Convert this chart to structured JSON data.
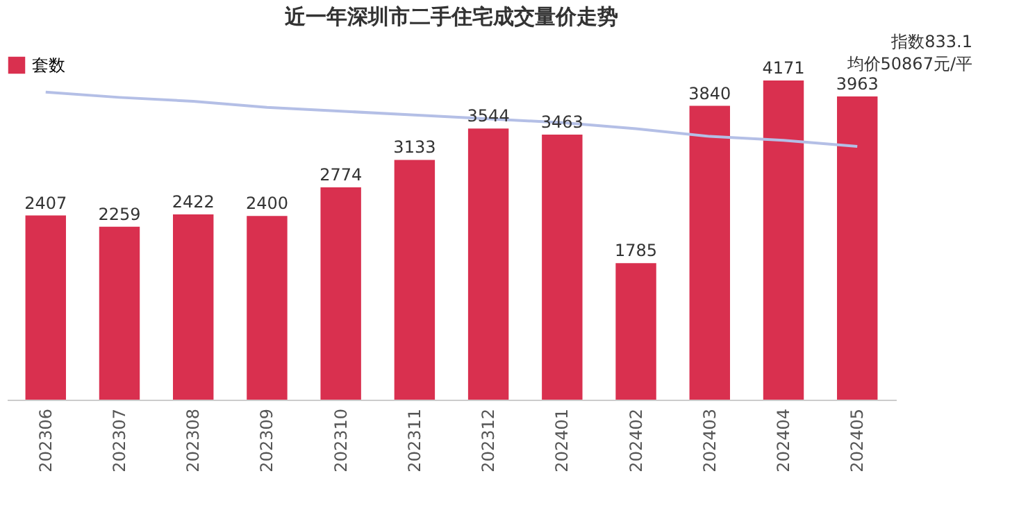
{
  "chart_data": {
    "type": "bar",
    "title": "近一年深圳市二手住宅成交量价走势",
    "categories": [
      "202306",
      "202307",
      "202308",
      "202309",
      "202310",
      "202311",
      "202312",
      "202401",
      "202402",
      "202403",
      "202404",
      "202405"
    ],
    "series": [
      {
        "name": "套数",
        "color": "#d9304f",
        "values": [
          2407,
          2259,
          2422,
          2400,
          2774,
          3133,
          3544,
          3463,
          1785,
          3840,
          4171,
          3963
        ],
        "value_labels": [
          "2407",
          "2259",
          "2422",
          "2400",
          "2774",
          "3133",
          "3544",
          "3463",
          "1785",
          "3840",
          "4171",
          "3963"
        ]
      },
      {
        "type": "line",
        "color": "#b4bfe6",
        "values": [
          4020,
          3950,
          3900,
          3820,
          3770,
          3720,
          3670,
          3620,
          3540,
          3440,
          3390,
          3310
        ]
      }
    ],
    "tick_labels": "x",
    "grid": false,
    "legend": "top",
    "annotations": [
      "指数833.1",
      "均价50867元/平"
    ]
  }
}
